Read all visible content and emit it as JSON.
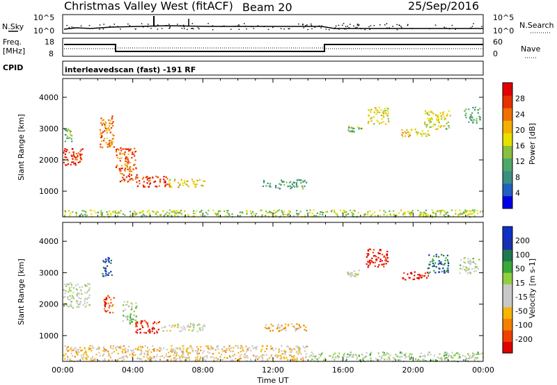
{
  "header": {
    "title": "Christmas Valley West (fitACF)",
    "beam": "Beam 20",
    "date": "25/Sep/2016"
  },
  "status_panel": {
    "nsky_label": "N.Sky",
    "nsky_ticks": [
      "10^5",
      "10^0"
    ],
    "nsearch_label": "N.Search",
    "freq_label_1": "Freq.",
    "freq_label_2": "[MHz]",
    "freq_ticks": [
      "18",
      "8"
    ],
    "nave_label": "Nave",
    "nave_ticks": [
      "60",
      "0"
    ],
    "cpid_label": "CPID",
    "cpid_text": "interleavedscan (fast) -191 RF"
  },
  "chart_data": [
    {
      "type": "heatmap",
      "panel": "power",
      "xlabel": "",
      "ylabel": "Slant Range [km]",
      "x_ticks": [
        "00:00",
        "04:00",
        "08:00",
        "12:00",
        "16:00",
        "20:00",
        "00:00"
      ],
      "xlim_hours": [
        0,
        24
      ],
      "y_ticks": [
        "1000",
        "2000",
        "3000",
        "4000"
      ],
      "ylim_km": [
        180,
        4600
      ],
      "colorbar_label": "Power [dB]",
      "colorbar_ticks": [
        "28",
        "24",
        "20",
        "16",
        "12",
        "8",
        "4"
      ],
      "colorbar_range": [
        0,
        30
      ],
      "colorscale": [
        "#0000e8",
        "#2060c0",
        "#3a8f80",
        "#4fa86a",
        "#88c040",
        "#e8e000",
        "#f4b000",
        "#f07000",
        "#e83000",
        "#e00000"
      ],
      "regions": [
        {
          "t0": 0.0,
          "t1": 1.2,
          "r0": 1850,
          "r1": 2400,
          "mean_db": 26
        },
        {
          "t0": 0.0,
          "t1": 0.5,
          "r0": 2600,
          "r1": 3000,
          "mean_db": 12
        },
        {
          "t0": 2.1,
          "t1": 2.9,
          "r0": 2400,
          "r1": 3500,
          "mean_db": 22
        },
        {
          "t0": 3.0,
          "t1": 4.2,
          "r0": 1300,
          "r1": 2400,
          "mean_db": 24
        },
        {
          "t0": 4.1,
          "t1": 6.0,
          "r0": 1150,
          "r1": 1500,
          "mean_db": 26
        },
        {
          "t0": 6.0,
          "t1": 8.1,
          "r0": 1150,
          "r1": 1400,
          "mean_db": 18
        },
        {
          "t0": 11.4,
          "t1": 13.9,
          "r0": 1100,
          "r1": 1400,
          "mean_db": 10
        },
        {
          "t0": 16.2,
          "t1": 17.1,
          "r0": 2900,
          "r1": 3100,
          "mean_db": 12
        },
        {
          "t0": 17.4,
          "t1": 18.6,
          "r0": 3150,
          "r1": 3700,
          "mean_db": 16
        },
        {
          "t0": 19.3,
          "t1": 20.9,
          "r0": 2750,
          "r1": 3000,
          "mean_db": 18
        },
        {
          "t0": 20.6,
          "t1": 22.1,
          "r0": 3000,
          "r1": 3600,
          "mean_db": 16
        },
        {
          "t0": 22.9,
          "t1": 23.8,
          "r0": 3200,
          "r1": 3700,
          "mean_db": 10
        },
        {
          "t0": 0.0,
          "t1": 24.0,
          "r0": 200,
          "r1": 420,
          "mean_db": 14
        }
      ]
    },
    {
      "type": "heatmap",
      "panel": "velocity",
      "xlabel": "Time UT",
      "ylabel": "Slant Range [km]",
      "x_ticks": [
        "00:00",
        "04:00",
        "08:00",
        "12:00",
        "16:00",
        "20:00",
        "00:00"
      ],
      "xlim_hours": [
        0,
        24
      ],
      "y_ticks": [
        "1000",
        "2000",
        "3000",
        "4000"
      ],
      "ylim_km": [
        180,
        4600
      ],
      "colorbar_label": "Velocity [m s-1]",
      "colorbar_ticks": [
        "200",
        "100",
        "50",
        "15",
        "-15",
        "-50",
        "-100",
        "-200"
      ],
      "colorbar_range": [
        -250,
        250
      ],
      "colorscale": [
        "#e00000",
        "#f04000",
        "#f48000",
        "#f8b400",
        "#c8c8c8",
        "#c8c8c8",
        "#90d040",
        "#38a838",
        "#207850",
        "#1830b0",
        "#1030c8"
      ],
      "regions": [
        {
          "t0": 0.0,
          "t1": 1.5,
          "r0": 1900,
          "r1": 2700,
          "mean_v": 0
        },
        {
          "t0": 2.2,
          "t1": 2.8,
          "r0": 2900,
          "r1": 3500,
          "mean_v": 180
        },
        {
          "t0": 2.3,
          "t1": 2.9,
          "r0": 1700,
          "r1": 2300,
          "mean_v": -180
        },
        {
          "t0": 3.4,
          "t1": 4.2,
          "r0": 1400,
          "r1": 2100,
          "mean_v": 40
        },
        {
          "t0": 4.1,
          "t1": 5.6,
          "r0": 1100,
          "r1": 1500,
          "mean_v": -220
        },
        {
          "t0": 5.6,
          "t1": 8.1,
          "r0": 1150,
          "r1": 1400,
          "mean_v": -5
        },
        {
          "t0": 11.5,
          "t1": 13.9,
          "r0": 1150,
          "r1": 1400,
          "mean_v": -90
        },
        {
          "t0": 17.3,
          "t1": 18.6,
          "r0": 3200,
          "r1": 3800,
          "mean_v": -230
        },
        {
          "t0": 19.3,
          "t1": 20.9,
          "r0": 2800,
          "r1": 3050,
          "mean_v": -230
        },
        {
          "t0": 20.8,
          "t1": 22.0,
          "r0": 3000,
          "r1": 3600,
          "mean_v": 150
        },
        {
          "t0": 16.2,
          "t1": 17.0,
          "r0": 2900,
          "r1": 3100,
          "mean_v": 0
        },
        {
          "t0": 22.6,
          "t1": 23.8,
          "r0": 3000,
          "r1": 3500,
          "mean_v": 5
        },
        {
          "t0": 0.0,
          "t1": 14.0,
          "r0": 200,
          "r1": 700,
          "mean_v": -60
        },
        {
          "t0": 14.0,
          "t1": 24.0,
          "r0": 200,
          "r1": 500,
          "mean_v": 30
        }
      ]
    }
  ]
}
